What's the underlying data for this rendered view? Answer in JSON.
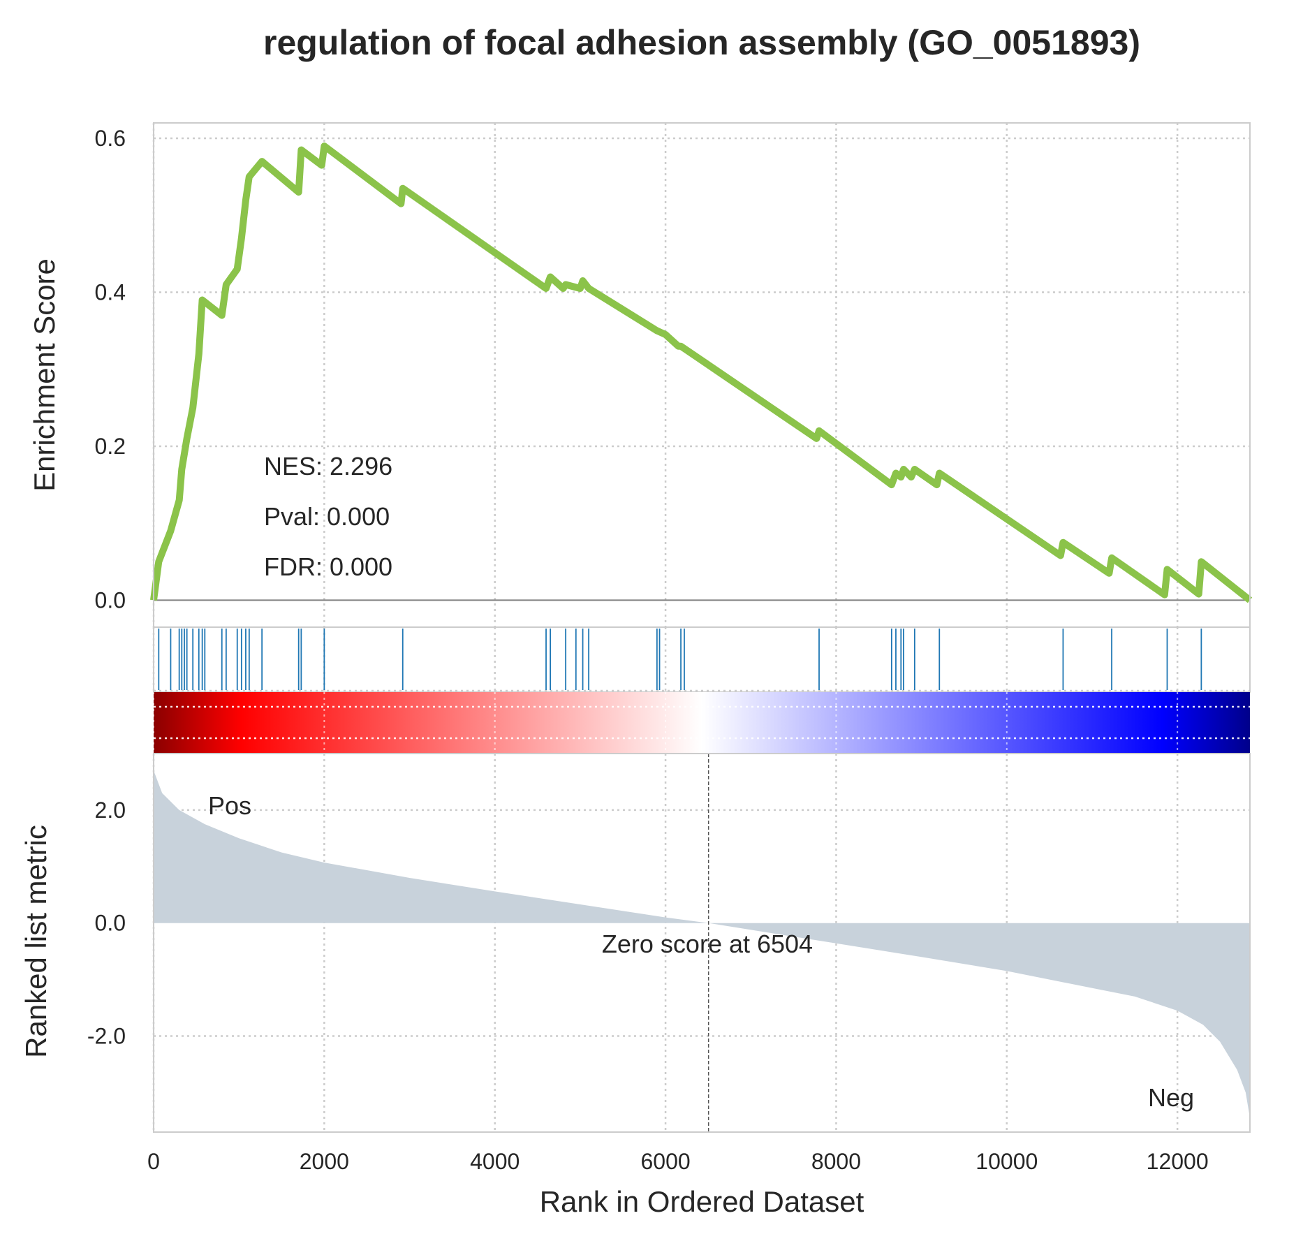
{
  "chart_data": {
    "type": "line",
    "title": "regulation of focal adhesion assembly (GO_0051893)",
    "xlabel": "Rank in Ordered Dataset",
    "x_ticks": [
      "0",
      "2000",
      "4000",
      "6000",
      "8000",
      "10000",
      "12000"
    ],
    "x_range": [
      0,
      12850
    ],
    "grid": true,
    "panels": {
      "enrichment": {
        "ylabel": "Enrichment Score",
        "y_ticks": [
          "0.0",
          "0.2",
          "0.4",
          "0.6"
        ],
        "ylim": [
          -0.035,
          0.62
        ],
        "line_color": "#8bc34a",
        "series": [
          {
            "x": [
              0,
              60,
              200,
              300,
              330,
              390,
              460,
              530,
              570,
              800,
              850,
              980,
              1030,
              1080,
              1120,
              1270,
              1700,
              1730,
              1970,
              2000,
              2900,
              2920,
              4600,
              4650,
              4800,
              4830,
              5000,
              5030,
              5100,
              5900,
              6000,
              6150,
              6180,
              7770,
              7800,
              8650,
              8700,
              8760,
              8790,
              8880,
              8920,
              9180,
              9210,
              10630,
              10660,
              11200,
              11230,
              11850,
              11880,
              12250,
              12280,
              12850
            ],
            "y": [
              0.0,
              0.05,
              0.09,
              0.13,
              0.17,
              0.21,
              0.25,
              0.32,
              0.39,
              0.37,
              0.41,
              0.43,
              0.47,
              0.52,
              0.55,
              0.57,
              0.53,
              0.585,
              0.565,
              0.59,
              0.515,
              0.535,
              0.405,
              0.42,
              0.405,
              0.41,
              0.405,
              0.415,
              0.405,
              0.35,
              0.345,
              0.33,
              0.33,
              0.21,
              0.22,
              0.15,
              0.165,
              0.16,
              0.17,
              0.16,
              0.17,
              0.15,
              0.165,
              0.058,
              0.075,
              0.035,
              0.055,
              0.007,
              0.04,
              0.008,
              0.05,
              0.0
            ]
          }
        ],
        "annotations": [
          "NES: 2.296",
          "Pval: 0.000",
          "FDR: 0.000"
        ]
      },
      "hits": {
        "color": "#1f77b4",
        "positions": [
          60,
          200,
          300,
          330,
          360,
          390,
          460,
          530,
          570,
          600,
          800,
          850,
          980,
          1030,
          1080,
          1120,
          1270,
          1700,
          1730,
          2000,
          2920,
          4600,
          4650,
          4830,
          4950,
          5030,
          5100,
          5900,
          5930,
          6180,
          6220,
          7800,
          8650,
          8700,
          8760,
          8790,
          8920,
          9210,
          10660,
          11230,
          11880,
          12280
        ]
      },
      "heatmap": {
        "colors": [
          "#8b0000",
          "#ff0000",
          "#ffffff",
          "#0000ff",
          "#00008b"
        ]
      },
      "ranked_metric": {
        "ylabel": "Ranked list metric",
        "y_ticks": [
          "2.0",
          "0.0",
          "-2.0"
        ],
        "ylim": [
          -3.7,
          3.0
        ],
        "fill_color": "#c8d2db",
        "series": [
          {
            "x": [
              0,
              100,
              300,
              600,
              1000,
              1500,
              2000,
              3000,
              4000,
              5000,
              6000,
              6504,
              7000,
              8000,
              9000,
              10000,
              11000,
              11500,
              12000,
              12300,
              12500,
              12700,
              12800,
              12850
            ],
            "y": [
              2.7,
              2.3,
              2.0,
              1.75,
              1.5,
              1.25,
              1.07,
              0.8,
              0.56,
              0.33,
              0.1,
              0.0,
              -0.12,
              -0.36,
              -0.6,
              -0.85,
              -1.15,
              -1.3,
              -1.55,
              -1.8,
              -2.1,
              -2.6,
              -3.0,
              -3.45
            ]
          }
        ],
        "pos_label": "Pos",
        "neg_label": "Neg",
        "pos_color": "#ff0000",
        "neg_color": "#0000ff",
        "zero_score_rank": 6504,
        "zero_label": "Zero score at 6504"
      }
    }
  }
}
